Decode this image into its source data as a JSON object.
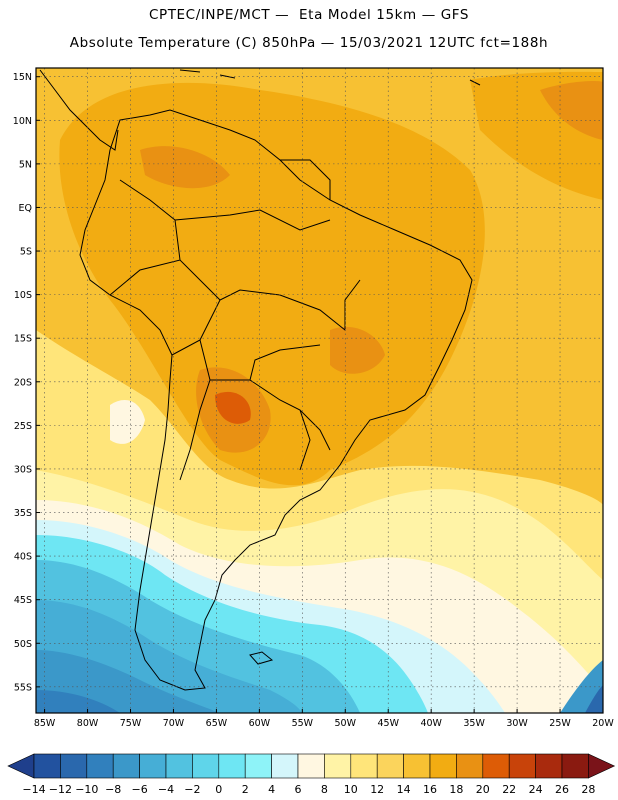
{
  "header": {
    "line1": "CPTEC/INPE/MCT —  Eta Model 15km — GFS",
    "line2": "Absolute Temperature (C) 850hPa — 15/03/2021 12UTC fct=188h"
  },
  "map": {
    "lat_labels": [
      "15N",
      "10N",
      "5N",
      "EQ",
      "5S",
      "10S",
      "15S",
      "20S",
      "25S",
      "30S",
      "35S",
      "40S",
      "45S",
      "50S",
      "55S"
    ],
    "lon_labels": [
      "85W",
      "80W",
      "75W",
      "70W",
      "65W",
      "60W",
      "55W",
      "50W",
      "45W",
      "40W",
      "35W",
      "30W",
      "25W",
      "20W"
    ],
    "lon_range": [
      -86,
      -20
    ],
    "lat_range": [
      -58,
      16
    ],
    "gridlines": "dotted"
  },
  "colorbar": {
    "labels": [
      "-14",
      "-12",
      "-10",
      "-8",
      "-6",
      "-4",
      "-2",
      "0",
      "2",
      "4",
      "6",
      "8",
      "10",
      "12",
      "14",
      "16",
      "18",
      "20",
      "22",
      "24",
      "26",
      "28"
    ],
    "colors": [
      "#1f3f8c",
      "#22529f",
      "#2a68ad",
      "#3180bd",
      "#3b98c9",
      "#46aed6",
      "#52c2e0",
      "#5fd5ea",
      "#6ee6f3",
      "#8ef3f8",
      "#d4f6fb",
      "#fff7e1",
      "#fff3a6",
      "#ffe57a",
      "#fbd45c",
      "#f7c133",
      "#f2ac12",
      "#e99113",
      "#dd5c06",
      "#c8430a",
      "#a92a0d",
      "#8a1a10",
      "#7a1319"
    ]
  }
}
